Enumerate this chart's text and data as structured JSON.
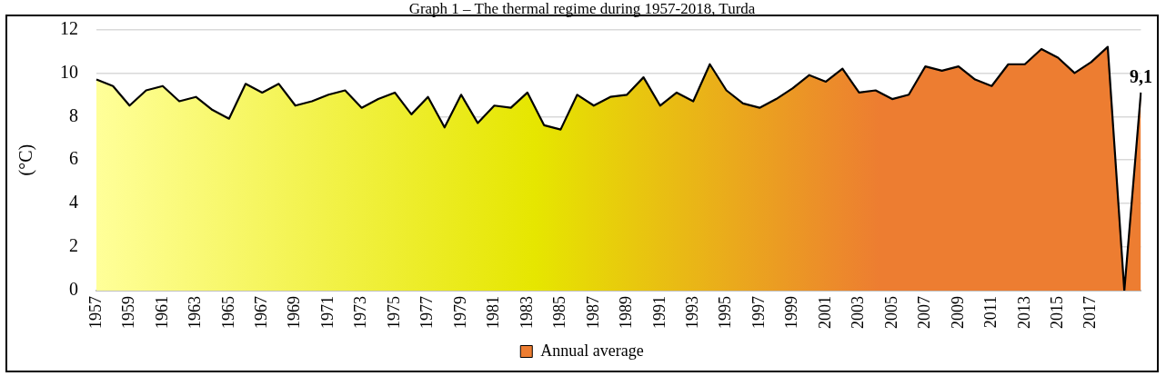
{
  "chart_data": {
    "type": "area",
    "title": "Graph 1 – The thermal regime during 1957-2018, Turda",
    "ylabel": "(°C)",
    "categories": [
      "1957",
      null,
      "1959",
      null,
      "1961",
      null,
      "1963",
      null,
      "1965",
      null,
      "1967",
      null,
      "1969",
      null,
      "1971",
      null,
      "1973",
      null,
      "1975",
      null,
      "1977",
      null,
      "1979",
      null,
      "1981",
      null,
      "1983",
      null,
      "1985",
      null,
      "1987",
      null,
      "1989",
      null,
      "1991",
      null,
      "1993",
      null,
      "1995",
      null,
      "1997",
      null,
      "1999",
      null,
      "2001",
      null,
      "2003",
      null,
      "2005",
      null,
      "2007",
      null,
      "2009",
      null,
      "2011",
      null,
      "2013",
      null,
      "2015",
      null,
      "2017",
      null,
      null,
      null
    ],
    "series": [
      {
        "name": "Annual average",
        "color": "#ed7d31",
        "values": [
          9.7,
          9.4,
          8.5,
          9.2,
          9.4,
          8.7,
          8.9,
          8.3,
          7.9,
          9.5,
          9.1,
          9.5,
          8.5,
          8.7,
          9.0,
          9.2,
          8.4,
          8.8,
          9.1,
          8.1,
          8.9,
          7.5,
          9.0,
          7.7,
          8.5,
          8.4,
          9.1,
          7.6,
          7.4,
          9.0,
          8.5,
          8.9,
          9.0,
          9.8,
          8.5,
          9.1,
          8.7,
          10.4,
          9.2,
          8.6,
          8.4,
          8.8,
          9.3,
          9.9,
          9.6,
          10.2,
          9.1,
          9.2,
          8.8,
          9.0,
          10.3,
          10.1,
          10.3,
          9.7,
          9.4,
          10.4,
          10.4,
          11.1,
          10.7,
          10.0,
          10.5,
          11.2,
          0,
          9.1
        ],
        "value_labels": [
          null,
          null,
          null,
          null,
          null,
          null,
          null,
          null,
          null,
          null,
          null,
          null,
          null,
          null,
          null,
          null,
          null,
          null,
          null,
          null,
          null,
          null,
          null,
          null,
          null,
          null,
          null,
          null,
          null,
          null,
          null,
          null,
          null,
          null,
          null,
          null,
          null,
          null,
          null,
          null,
          null,
          null,
          null,
          null,
          null,
          null,
          null,
          null,
          null,
          null,
          null,
          null,
          null,
          null,
          null,
          null,
          null,
          null,
          null,
          null,
          null,
          null,
          null,
          "9,1"
        ]
      }
    ],
    "ylim": [
      0,
      12
    ],
    "yticks": [
      0,
      2,
      4,
      6,
      8,
      10,
      12
    ],
    "grid": "y",
    "legend": "bottom",
    "marker": "none",
    "line_style": "solid"
  }
}
